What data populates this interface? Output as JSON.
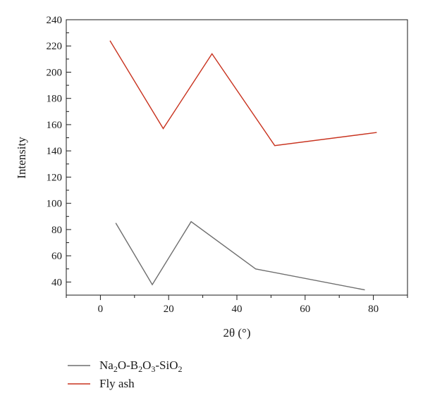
{
  "chart_data": {
    "type": "line",
    "xlabel": "2θ (°)",
    "ylabel": "Intensity",
    "xlim": [
      -10,
      90
    ],
    "ylim": [
      30,
      240
    ],
    "x_ticks": [
      0,
      20,
      40,
      60,
      80
    ],
    "y_ticks": [
      40,
      60,
      80,
      100,
      120,
      140,
      160,
      180,
      200,
      220,
      240
    ],
    "grid": false,
    "legend_position": "bottom",
    "series": [
      {
        "name": "Na2O-B2O3-SiO2",
        "color": "#6e6e6e",
        "x": [
          4.5,
          15.2,
          26.6,
          45.5,
          77.5
        ],
        "y": [
          85,
          38,
          86,
          50,
          34
        ]
      },
      {
        "name": "Fly ash",
        "color": "#c8321e",
        "x": [
          2.8,
          18.4,
          32.7,
          51.1,
          81.0
        ],
        "y": [
          224,
          157,
          214,
          144,
          154
        ]
      }
    ]
  }
}
